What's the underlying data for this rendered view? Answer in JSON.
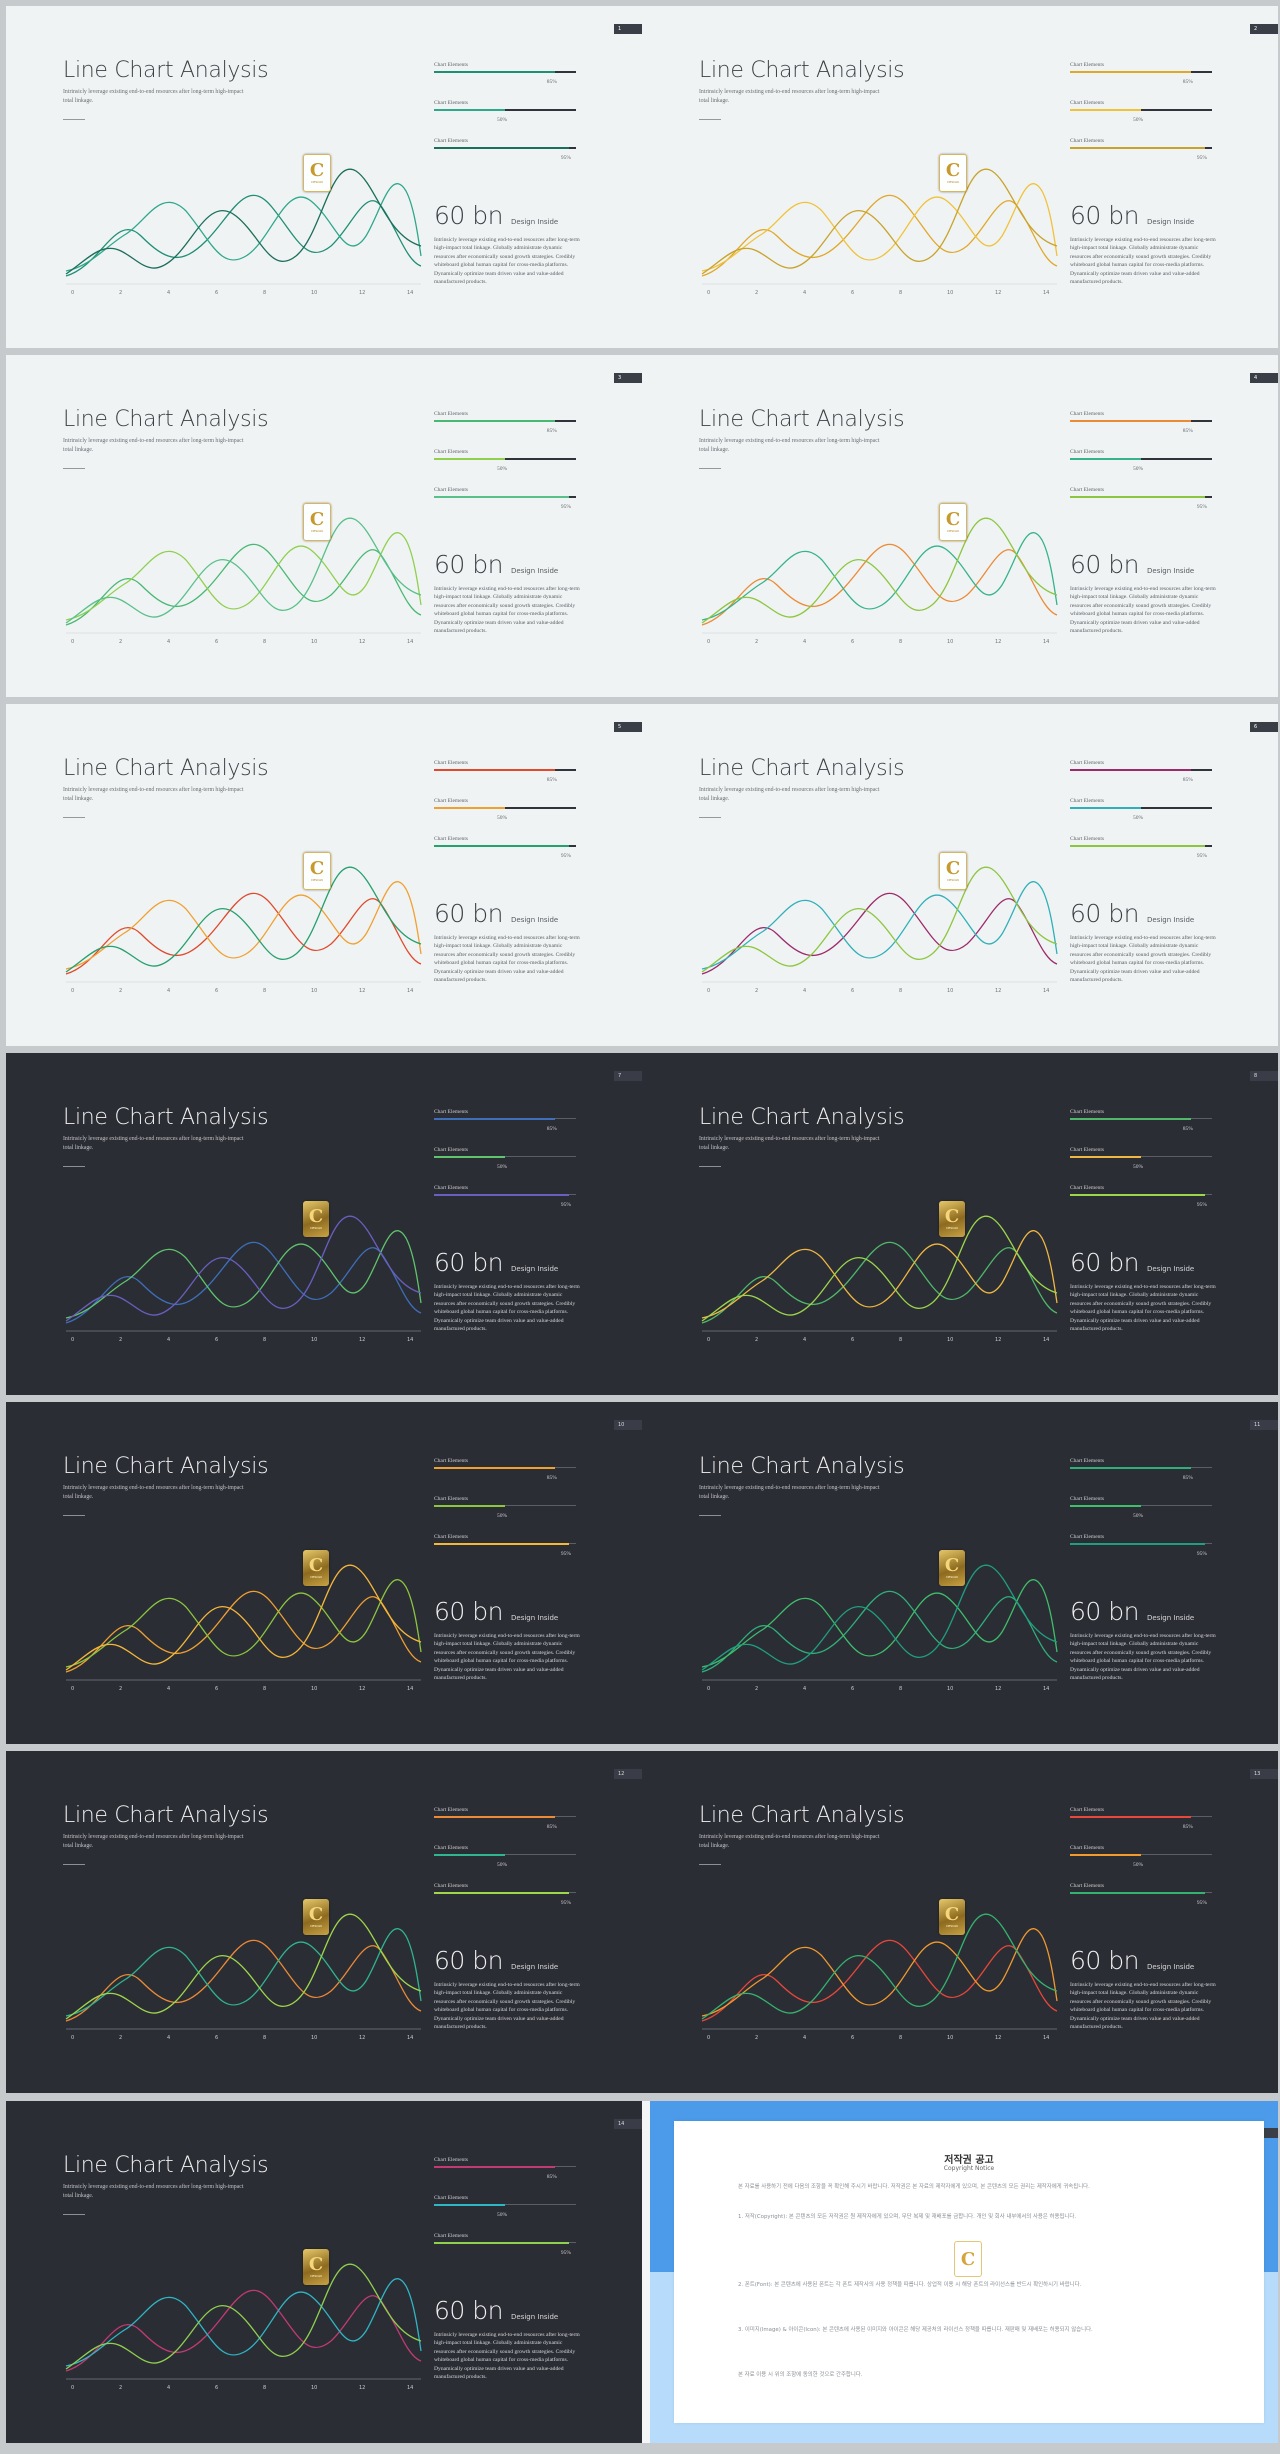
{
  "common": {
    "title": "Line Chart Analysis",
    "subtitle": "Intrinsicly leverage existing end-to-end resources after long-term high-impact total linkage.",
    "big_number": "60 bn",
    "big_number_note": "Design Inside",
    "body": "Intrinsicly leverage existing end-to-end resources after long-term high-impact total linkage. Globally administrate dynamic resources after economically sound growth strategies. Credibly whiteboard global human capital for cross-media platforms. Dynamically optimize team driven value and value-added manufactured products.",
    "bar_label": "Chart Elements",
    "bar_values": [
      0.85,
      0.5,
      0.95
    ],
    "bar_percent_labels": [
      "85%",
      "50%",
      "95%"
    ],
    "x_ticks": [
      "0",
      "2",
      "4",
      "6",
      "8",
      "10",
      "12",
      "14"
    ],
    "logo_letter": "C",
    "logo_caption": "DESIGN"
  },
  "slides": [
    {
      "page": "1",
      "theme": "light",
      "colors": [
        "#1f8f74",
        "#2ea88a",
        "#1b6e5a"
      ]
    },
    {
      "page": "2",
      "theme": "light",
      "colors": [
        "#e0a82a",
        "#f0c23a",
        "#c8a32b"
      ]
    },
    {
      "page": "3",
      "theme": "light",
      "colors": [
        "#49b873",
        "#8fd04e",
        "#59c08a"
      ]
    },
    {
      "page": "4",
      "theme": "light",
      "colors": [
        "#ec8a35",
        "#35b38a",
        "#8cc63f"
      ]
    },
    {
      "page": "5",
      "theme": "light",
      "colors": [
        "#e0492c",
        "#f0a030",
        "#25a06e"
      ]
    },
    {
      "page": "6",
      "theme": "light",
      "colors": [
        "#9c2a6a",
        "#2fb0b8",
        "#8cc63f"
      ]
    },
    {
      "page": "7",
      "theme": "dark",
      "colors": [
        "#3e6fb8",
        "#5fc46c",
        "#6a5fbf"
      ]
    },
    {
      "page": "8",
      "theme": "dark",
      "colors": [
        "#4fb86a",
        "#f0b840",
        "#9cd64b"
      ]
    },
    {
      "page": "10",
      "theme": "dark",
      "colors": [
        "#f0a030",
        "#8cc63f",
        "#f5b73a"
      ]
    },
    {
      "page": "11",
      "theme": "dark",
      "colors": [
        "#2fb07a",
        "#3fbf6a",
        "#1f9f7f"
      ]
    },
    {
      "page": "12",
      "theme": "dark",
      "colors": [
        "#ec8a35",
        "#2fb58f",
        "#9fd64a"
      ]
    },
    {
      "page": "13",
      "theme": "dark",
      "colors": [
        "#e8473a",
        "#f29a2e",
        "#35b36e"
      ]
    },
    {
      "page": "14",
      "theme": "dark",
      "colors": [
        "#c23a73",
        "#2fb6c4",
        "#8fd04e"
      ]
    }
  ],
  "copyright": {
    "title": "저작권 공고",
    "subtitle": "Copyright Notice",
    "paragraphs": [
      "본 자료를 사용하기 전에 다음의 조항을 꼭 확인해 주시기 바랍니다. 저작권은 본 자료의 제작자에게 있으며, 본 콘텐츠의 모든 권리는 제작자에게 귀속됩니다.",
      "1. 저작(Copyright): 본 콘텐츠의 모든 저작권은 원 제작자에게 있으며, 무단 복제 및 재배포를 금합니다. 개인 및 회사 내부에서의 사용은 허용됩니다.",
      "2. 폰트(Font): 본 콘텐츠에 사용된 폰트는 각 폰트 제작사의 사용 정책을 따릅니다. 상업적 이용 시 해당 폰트의 라이선스를 반드시 확인하시기 바랍니다.",
      "3. 이미지(Image) & 아이콘(Icon): 본 콘텐츠에 사용된 이미지와 아이콘은 해당 제공처의 라이선스 정책을 따릅니다. 재판매 및 재배포는 허용되지 않습니다.",
      "본 자료 이용 시 위의 조항에 동의한 것으로 간주합니다."
    ],
    "logo_letter": "C"
  }
}
